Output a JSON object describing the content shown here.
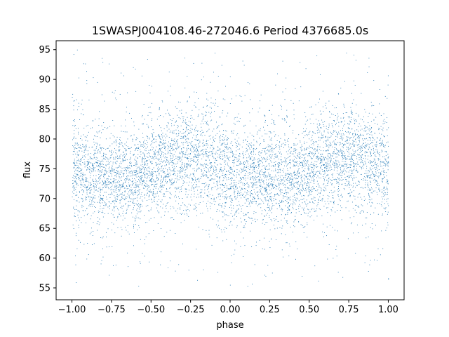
{
  "chart_data": {
    "type": "scatter",
    "title": "1SWASPJ004108.46-272046.6 Period 4376685.0s",
    "xlabel": "phase",
    "ylabel": "flux",
    "xlim": [
      -1.1,
      1.1
    ],
    "ylim": [
      53,
      96.5
    ],
    "xticks": [
      -1.0,
      -0.75,
      -0.5,
      -0.25,
      0.0,
      0.25,
      0.5,
      0.75,
      1.0
    ],
    "xtick_labels": [
      "−1.00",
      "−0.75",
      "−0.50",
      "−0.25",
      "0.00",
      "0.25",
      "0.50",
      "0.75",
      "1.00"
    ],
    "yticks": [
      55,
      60,
      65,
      70,
      75,
      80,
      85,
      90,
      95
    ],
    "ytick_labels": [
      "55",
      "60",
      "65",
      "70",
      "75",
      "80",
      "85",
      "90",
      "95"
    ],
    "grid": false,
    "marker_color": "#1f77b4",
    "phase_range": [
      -1.0,
      1.0
    ],
    "band_profile": {
      "phase": [
        -1.0,
        -0.875,
        -0.75,
        -0.625,
        -0.5,
        -0.375,
        -0.25,
        -0.125,
        0.0,
        0.125,
        0.25,
        0.375,
        0.5,
        0.625,
        0.75,
        0.875,
        1.0
      ],
      "median": [
        75.5,
        74.0,
        73.5,
        73.8,
        74.5,
        76.5,
        77.5,
        76.0,
        74.5,
        74.0,
        73.5,
        73.8,
        74.5,
        76.5,
        77.5,
        76.5,
        75.5
      ],
      "spread": [
        4.5,
        4.0,
        4.0,
        4.0,
        4.0,
        4.0,
        4.5,
        4.5,
        4.5,
        4.0,
        4.0,
        4.0,
        4.0,
        4.0,
        4.5,
        4.5,
        4.5
      ]
    },
    "flux_extent": [
      55,
      95
    ]
  }
}
